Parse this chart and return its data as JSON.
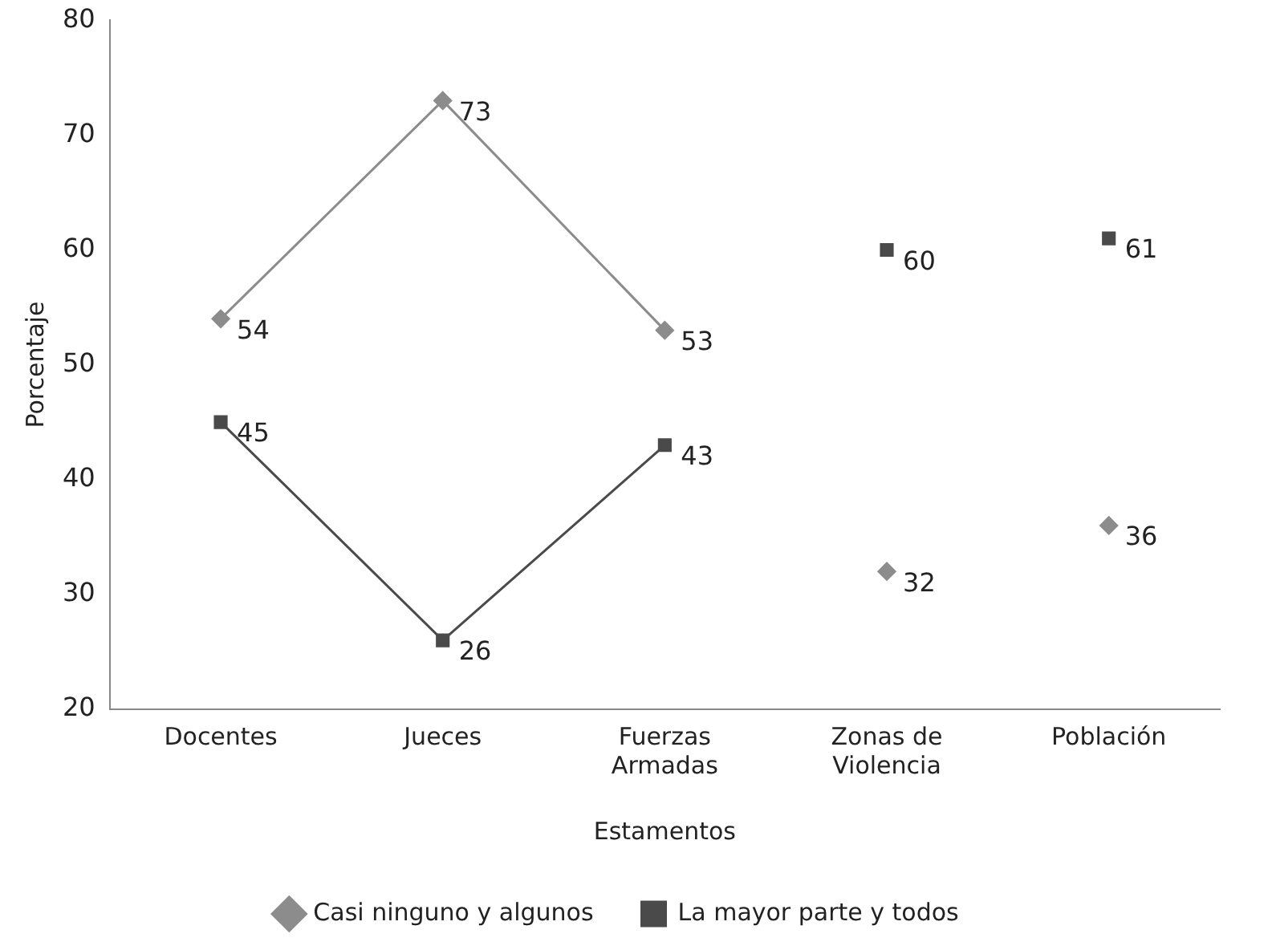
{
  "chart_data": {
    "type": "line",
    "xlabel": "Estamentos",
    "ylabel": "Porcentaje",
    "categories": [
      "Docentes",
      "Jueces",
      "Fuerzas Armadas",
      "Zonas de Violencia",
      "Población"
    ],
    "ylim": [
      20,
      80
    ],
    "yticks": [
      20,
      30,
      40,
      50,
      60,
      70,
      80
    ],
    "grid": false,
    "legend": "bottom",
    "data_labels": true,
    "series": [
      {
        "name": "Casi ninguno y algunos",
        "color": "#8c8c8c",
        "marker": "diamond",
        "values": [
          54,
          73,
          53,
          null,
          null
        ]
      },
      {
        "name": "La mayor parte y todos",
        "color": "#4a4a4a",
        "marker": "square",
        "values": [
          45,
          26,
          43,
          null,
          null
        ]
      },
      {
        "type": "scatter",
        "color": "#8c8c8c",
        "marker": "diamond",
        "values": [
          null,
          null,
          null,
          32,
          36
        ]
      },
      {
        "type": "scatter",
        "color": "#4a4a4a",
        "marker": "square",
        "values": [
          null,
          null,
          null,
          60,
          61
        ]
      }
    ]
  }
}
